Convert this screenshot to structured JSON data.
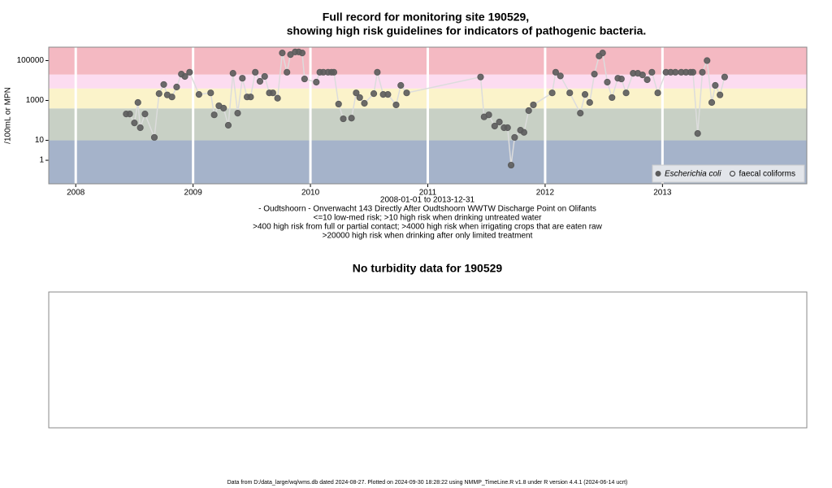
{
  "chart_data": {
    "type": "scatter",
    "title": "Full record for monitoring site 190529,",
    "subtitle": "showing high risk guidelines for indicators of pathogenic bacteria.",
    "y_label": "/100mL or MPN",
    "x_caption": [
      "2008-01-01 to 2013-12-31",
      "- Oudtshoorn - Onverwacht 143 Directly After Oudtshoorn WWTW Discharge Point on Olifants",
      "<=10 low-med risk; >10 high risk when drinking untreated water",
      ">400 high risk from full or partial contact; >4000 high risk when irrigating crops that are eaten raw",
      ">20000 high risk when drinking after only limited treatment"
    ],
    "log_y": true,
    "xlim": [
      2007.77,
      2014.23
    ],
    "ylim": [
      0.066,
      470000
    ],
    "xticks": [
      2008,
      2009,
      2010,
      2011,
      2012,
      2013
    ],
    "yticks": [
      1,
      10,
      1000,
      100000
    ],
    "guidelines": [
      10,
      400,
      4000,
      20000
    ],
    "band_colors": [
      "#a5b3ca",
      "#c8d0c5",
      "#fbf3ca",
      "#fcdcf0",
      "#f4b9c2"
    ],
    "line_color": "#dcdcdc",
    "legend_position": "bottom-right",
    "series": [
      {
        "name": "Escherichia coli",
        "color": "#5c5c5c",
        "filled": true,
        "x": [
          2008.43,
          2008.46,
          2008.5,
          2008.53,
          2008.55,
          2008.59,
          2008.67,
          2008.71,
          2008.75,
          2008.78,
          2008.82,
          2008.86,
          2008.9,
          2008.93,
          2008.97,
          2009.05,
          2009.15,
          2009.18,
          2009.22,
          2009.26,
          2009.3,
          2009.34,
          2009.38,
          2009.42,
          2009.46,
          2009.49,
          2009.53,
          2009.57,
          2009.61,
          2009.65,
          2009.68,
          2009.72,
          2009.76,
          2009.8,
          2009.83,
          2009.87,
          2009.9,
          2009.93,
          2009.95,
          2010.05,
          2010.08,
          2010.11,
          2010.15,
          2010.18,
          2010.2,
          2010.24,
          2010.28,
          2010.35,
          2010.39,
          2010.42,
          2010.46,
          2010.54,
          2010.57,
          2010.62,
          2010.66,
          2010.73,
          2010.77,
          2010.82,
          2011.45,
          2011.48,
          2011.52,
          2011.57,
          2011.61,
          2011.65,
          2011.68,
          2011.71,
          2011.74,
          2011.79,
          2011.82,
          2011.86,
          2011.9,
          2012.06,
          2012.09,
          2012.13,
          2012.21,
          2012.3,
          2012.34,
          2012.38,
          2012.42,
          2012.46,
          2012.49,
          2012.53,
          2012.57,
          2012.62,
          2012.65,
          2012.69,
          2012.75,
          2012.79,
          2012.83,
          2012.87,
          2012.91,
          2012.96,
          2013.03,
          2013.07,
          2013.11,
          2013.16,
          2013.2,
          2013.24,
          2013.26,
          2013.3,
          2013.34,
          2013.38,
          2013.42,
          2013.45,
          2013.49,
          2013.53
        ],
        "values": [
          210,
          210,
          75,
          790,
          43,
          210,
          14,
          2200,
          6300,
          1900,
          1500,
          4700,
          21000,
          16000,
          26000,
          2000,
          2400,
          190,
          540,
          410,
          57,
          23000,
          230,
          13000,
          1500,
          1500,
          26000,
          9100,
          16000,
          2400,
          2400,
          1300,
          240000,
          26000,
          200000,
          270000,
          270000,
          240000,
          12000,
          8300,
          26000,
          26000,
          26000,
          26000,
          26000,
          660,
          120,
          130,
          2400,
          1400,
          720,
          2200,
          26000,
          2000,
          2000,
          600,
          5700,
          2400,
          15000,
          150,
          190,
          52,
          83,
          43,
          43,
          0.57,
          14,
          32,
          25,
          310,
          600,
          2400,
          26000,
          17000,
          2400,
          230,
          2000,
          790,
          21000,
          170000,
          240000,
          8300,
          1400,
          13000,
          12000,
          2400,
          23000,
          23000,
          19000,
          11000,
          26000,
          2400,
          26000,
          26000,
          26000,
          26000,
          26000,
          26000,
          26000,
          22,
          26000,
          100000,
          790,
          5700,
          1900,
          15000
        ]
      },
      {
        "name": "faecal coliforms",
        "color": "#333333",
        "filled": false,
        "x": [],
        "values": []
      }
    ],
    "panel2_title": "No turbidity data for 190529",
    "footer": "Data from D:/data_large/wq/wms.db dated 2024-08-27. Plotted on 2024-09-30 18:28:22 using NMMP_TimeLine.R v1.8 under R version 4.4.1 (2024-06-14 ucrt)"
  }
}
